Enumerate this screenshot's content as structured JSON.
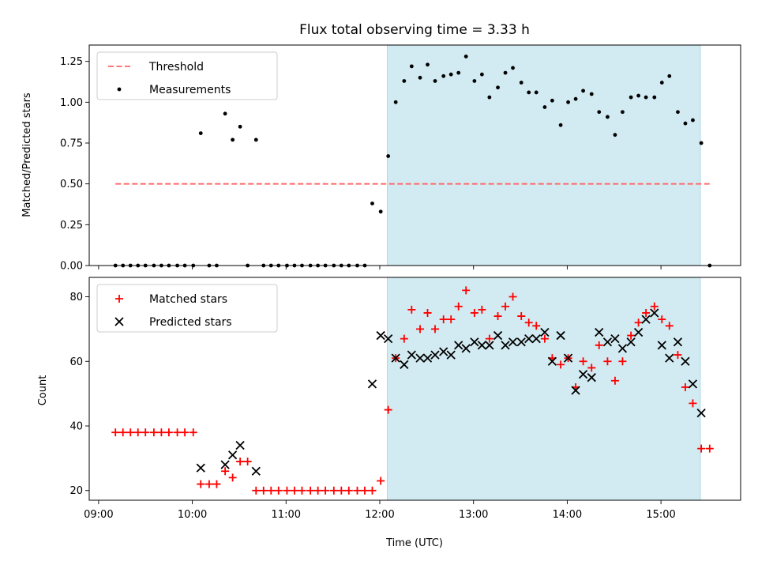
{
  "title": "Flux total observing time = 3.33 h",
  "colors": {
    "threshold": "#ff6666",
    "measure": "#000000",
    "matched": "#ff0000",
    "predicted": "#000000",
    "shade": "#add8e6"
  },
  "chart_data": [
    {
      "type": "scatter",
      "ylabel": "Matched/Predicted stars",
      "ylim": [
        0,
        1.35
      ],
      "yticks": [
        "0.00",
        "0.25",
        "0.50",
        "0.75",
        "1.00",
        "1.25"
      ],
      "xlim": [
        8.9,
        15.85
      ],
      "shaded_span": [
        12.08,
        15.42
      ],
      "legend": {
        "position": "top-left",
        "entries": [
          "Threshold",
          "Measurements"
        ]
      },
      "threshold": {
        "name": "Threshold",
        "y": 0.5,
        "x": [
          9.18,
          15.52
        ]
      },
      "series": [
        {
          "name": "Measurements",
          "points": [
            [
              9.18,
              0
            ],
            [
              9.26,
              0
            ],
            [
              9.34,
              0
            ],
            [
              9.42,
              0
            ],
            [
              9.5,
              0
            ],
            [
              9.59,
              0
            ],
            [
              9.67,
              0
            ],
            [
              9.75,
              0
            ],
            [
              9.84,
              0
            ],
            [
              9.92,
              0
            ],
            [
              10.01,
              0
            ],
            [
              10.09,
              0.81
            ],
            [
              10.18,
              0
            ],
            [
              10.26,
              0
            ],
            [
              10.35,
              0.93
            ],
            [
              10.43,
              0.77
            ],
            [
              10.51,
              0.85
            ],
            [
              10.59,
              0
            ],
            [
              10.68,
              0.77
            ],
            [
              10.76,
              0
            ],
            [
              10.84,
              0
            ],
            [
              10.92,
              0
            ],
            [
              11.01,
              0
            ],
            [
              11.09,
              0
            ],
            [
              11.17,
              0
            ],
            [
              11.26,
              0
            ],
            [
              11.34,
              0
            ],
            [
              11.42,
              0
            ],
            [
              11.51,
              0
            ],
            [
              11.59,
              0
            ],
            [
              11.67,
              0
            ],
            [
              11.76,
              0
            ],
            [
              11.84,
              0
            ],
            [
              11.92,
              0.38
            ],
            [
              12.01,
              0.33
            ],
            [
              12.09,
              0.67
            ],
            [
              12.17,
              1.0
            ],
            [
              12.26,
              1.13
            ],
            [
              12.34,
              1.22
            ],
            [
              12.43,
              1.15
            ],
            [
              12.51,
              1.23
            ],
            [
              12.59,
              1.13
            ],
            [
              12.68,
              1.16
            ],
            [
              12.76,
              1.17
            ],
            [
              12.84,
              1.18
            ],
            [
              12.92,
              1.28
            ],
            [
              13.01,
              1.13
            ],
            [
              13.09,
              1.17
            ],
            [
              13.17,
              1.03
            ],
            [
              13.26,
              1.09
            ],
            [
              13.34,
              1.18
            ],
            [
              13.42,
              1.21
            ],
            [
              13.51,
              1.12
            ],
            [
              13.59,
              1.06
            ],
            [
              13.67,
              1.06
            ],
            [
              13.76,
              0.97
            ],
            [
              13.84,
              1.01
            ],
            [
              13.93,
              0.86
            ],
            [
              14.01,
              1.0
            ],
            [
              14.09,
              1.02
            ],
            [
              14.17,
              1.07
            ],
            [
              14.26,
              1.05
            ],
            [
              14.34,
              0.94
            ],
            [
              14.43,
              0.91
            ],
            [
              14.51,
              0.8
            ],
            [
              14.59,
              0.94
            ],
            [
              14.68,
              1.03
            ],
            [
              14.76,
              1.04
            ],
            [
              14.84,
              1.03
            ],
            [
              14.93,
              1.03
            ],
            [
              15.01,
              1.12
            ],
            [
              15.09,
              1.16
            ],
            [
              15.18,
              0.94
            ],
            [
              15.26,
              0.87
            ],
            [
              15.34,
              0.89
            ],
            [
              15.43,
              0.75
            ],
            [
              15.52,
              0
            ]
          ]
        }
      ]
    },
    {
      "type": "scatter",
      "xlabel": "Time (UTC)",
      "ylabel": "Count",
      "ylim": [
        17,
        86
      ],
      "yticks": [
        "20",
        "40",
        "60",
        "80"
      ],
      "xlim": [
        8.9,
        15.85
      ],
      "xticks": [
        "09:00",
        "10:00",
        "11:00",
        "12:00",
        "13:00",
        "14:00",
        "15:00"
      ],
      "shaded_span": [
        12.08,
        15.42
      ],
      "legend": {
        "position": "top-left",
        "entries": [
          "Matched stars",
          "Predicted stars"
        ]
      },
      "series": [
        {
          "name": "Matched stars",
          "marker": "plus",
          "points": [
            [
              9.18,
              38
            ],
            [
              9.26,
              38
            ],
            [
              9.34,
              38
            ],
            [
              9.42,
              38
            ],
            [
              9.5,
              38
            ],
            [
              9.59,
              38
            ],
            [
              9.67,
              38
            ],
            [
              9.75,
              38
            ],
            [
              9.84,
              38
            ],
            [
              9.92,
              38
            ],
            [
              10.01,
              38
            ],
            [
              10.09,
              22
            ],
            [
              10.18,
              22
            ],
            [
              10.26,
              22
            ],
            [
              10.35,
              26
            ],
            [
              10.43,
              24
            ],
            [
              10.51,
              29
            ],
            [
              10.59,
              29
            ],
            [
              10.68,
              20
            ],
            [
              10.76,
              20
            ],
            [
              10.84,
              20
            ],
            [
              10.92,
              20
            ],
            [
              11.01,
              20
            ],
            [
              11.09,
              20
            ],
            [
              11.17,
              20
            ],
            [
              11.26,
              20
            ],
            [
              11.34,
              20
            ],
            [
              11.42,
              20
            ],
            [
              11.51,
              20
            ],
            [
              11.59,
              20
            ],
            [
              11.67,
              20
            ],
            [
              11.76,
              20
            ],
            [
              11.84,
              20
            ],
            [
              11.92,
              20
            ],
            [
              12.01,
              23
            ],
            [
              12.09,
              45
            ],
            [
              12.17,
              61
            ],
            [
              12.26,
              67
            ],
            [
              12.34,
              76
            ],
            [
              12.43,
              70
            ],
            [
              12.51,
              75
            ],
            [
              12.59,
              70
            ],
            [
              12.68,
              73
            ],
            [
              12.76,
              73
            ],
            [
              12.84,
              77
            ],
            [
              12.92,
              82
            ],
            [
              13.01,
              75
            ],
            [
              13.09,
              76
            ],
            [
              13.17,
              67
            ],
            [
              13.26,
              74
            ],
            [
              13.34,
              77
            ],
            [
              13.42,
              80
            ],
            [
              13.51,
              74
            ],
            [
              13.59,
              72
            ],
            [
              13.67,
              71
            ],
            [
              13.76,
              67
            ],
            [
              13.84,
              61
            ],
            [
              13.93,
              59
            ],
            [
              14.01,
              61
            ],
            [
              14.09,
              52
            ],
            [
              14.17,
              60
            ],
            [
              14.26,
              58
            ],
            [
              14.34,
              65
            ],
            [
              14.43,
              60
            ],
            [
              14.51,
              54
            ],
            [
              14.59,
              60
            ],
            [
              14.68,
              68
            ],
            [
              14.76,
              72
            ],
            [
              14.84,
              75
            ],
            [
              14.93,
              77
            ],
            [
              15.01,
              73
            ],
            [
              15.09,
              71
            ],
            [
              15.18,
              62
            ],
            [
              15.26,
              52
            ],
            [
              15.34,
              47
            ],
            [
              15.43,
              33
            ],
            [
              15.52,
              33
            ]
          ]
        },
        {
          "name": "Predicted stars",
          "marker": "x",
          "points": [
            [
              10.09,
              27
            ],
            [
              10.35,
              28
            ],
            [
              10.43,
              31
            ],
            [
              10.51,
              34
            ],
            [
              10.68,
              26
            ],
            [
              11.92,
              53
            ],
            [
              12.01,
              68
            ],
            [
              12.09,
              67
            ],
            [
              12.17,
              61
            ],
            [
              12.26,
              59
            ],
            [
              12.34,
              62
            ],
            [
              12.43,
              61
            ],
            [
              12.51,
              61
            ],
            [
              12.59,
              62
            ],
            [
              12.68,
              63
            ],
            [
              12.76,
              62
            ],
            [
              12.84,
              65
            ],
            [
              12.92,
              64
            ],
            [
              13.01,
              66
            ],
            [
              13.09,
              65
            ],
            [
              13.17,
              65
            ],
            [
              13.26,
              68
            ],
            [
              13.34,
              65
            ],
            [
              13.42,
              66
            ],
            [
              13.51,
              66
            ],
            [
              13.59,
              67
            ],
            [
              13.67,
              67
            ],
            [
              13.76,
              69
            ],
            [
              13.84,
              60
            ],
            [
              13.93,
              68
            ],
            [
              14.01,
              61
            ],
            [
              14.09,
              51
            ],
            [
              14.17,
              56
            ],
            [
              14.26,
              55
            ],
            [
              14.34,
              69
            ],
            [
              14.43,
              66
            ],
            [
              14.51,
              67
            ],
            [
              14.59,
              64
            ],
            [
              14.68,
              66
            ],
            [
              14.76,
              69
            ],
            [
              14.84,
              73
            ],
            [
              14.93,
              75
            ],
            [
              15.01,
              65
            ],
            [
              15.09,
              61
            ],
            [
              15.18,
              66
            ],
            [
              15.26,
              60
            ],
            [
              15.34,
              53
            ],
            [
              15.43,
              44
            ]
          ]
        }
      ]
    }
  ]
}
